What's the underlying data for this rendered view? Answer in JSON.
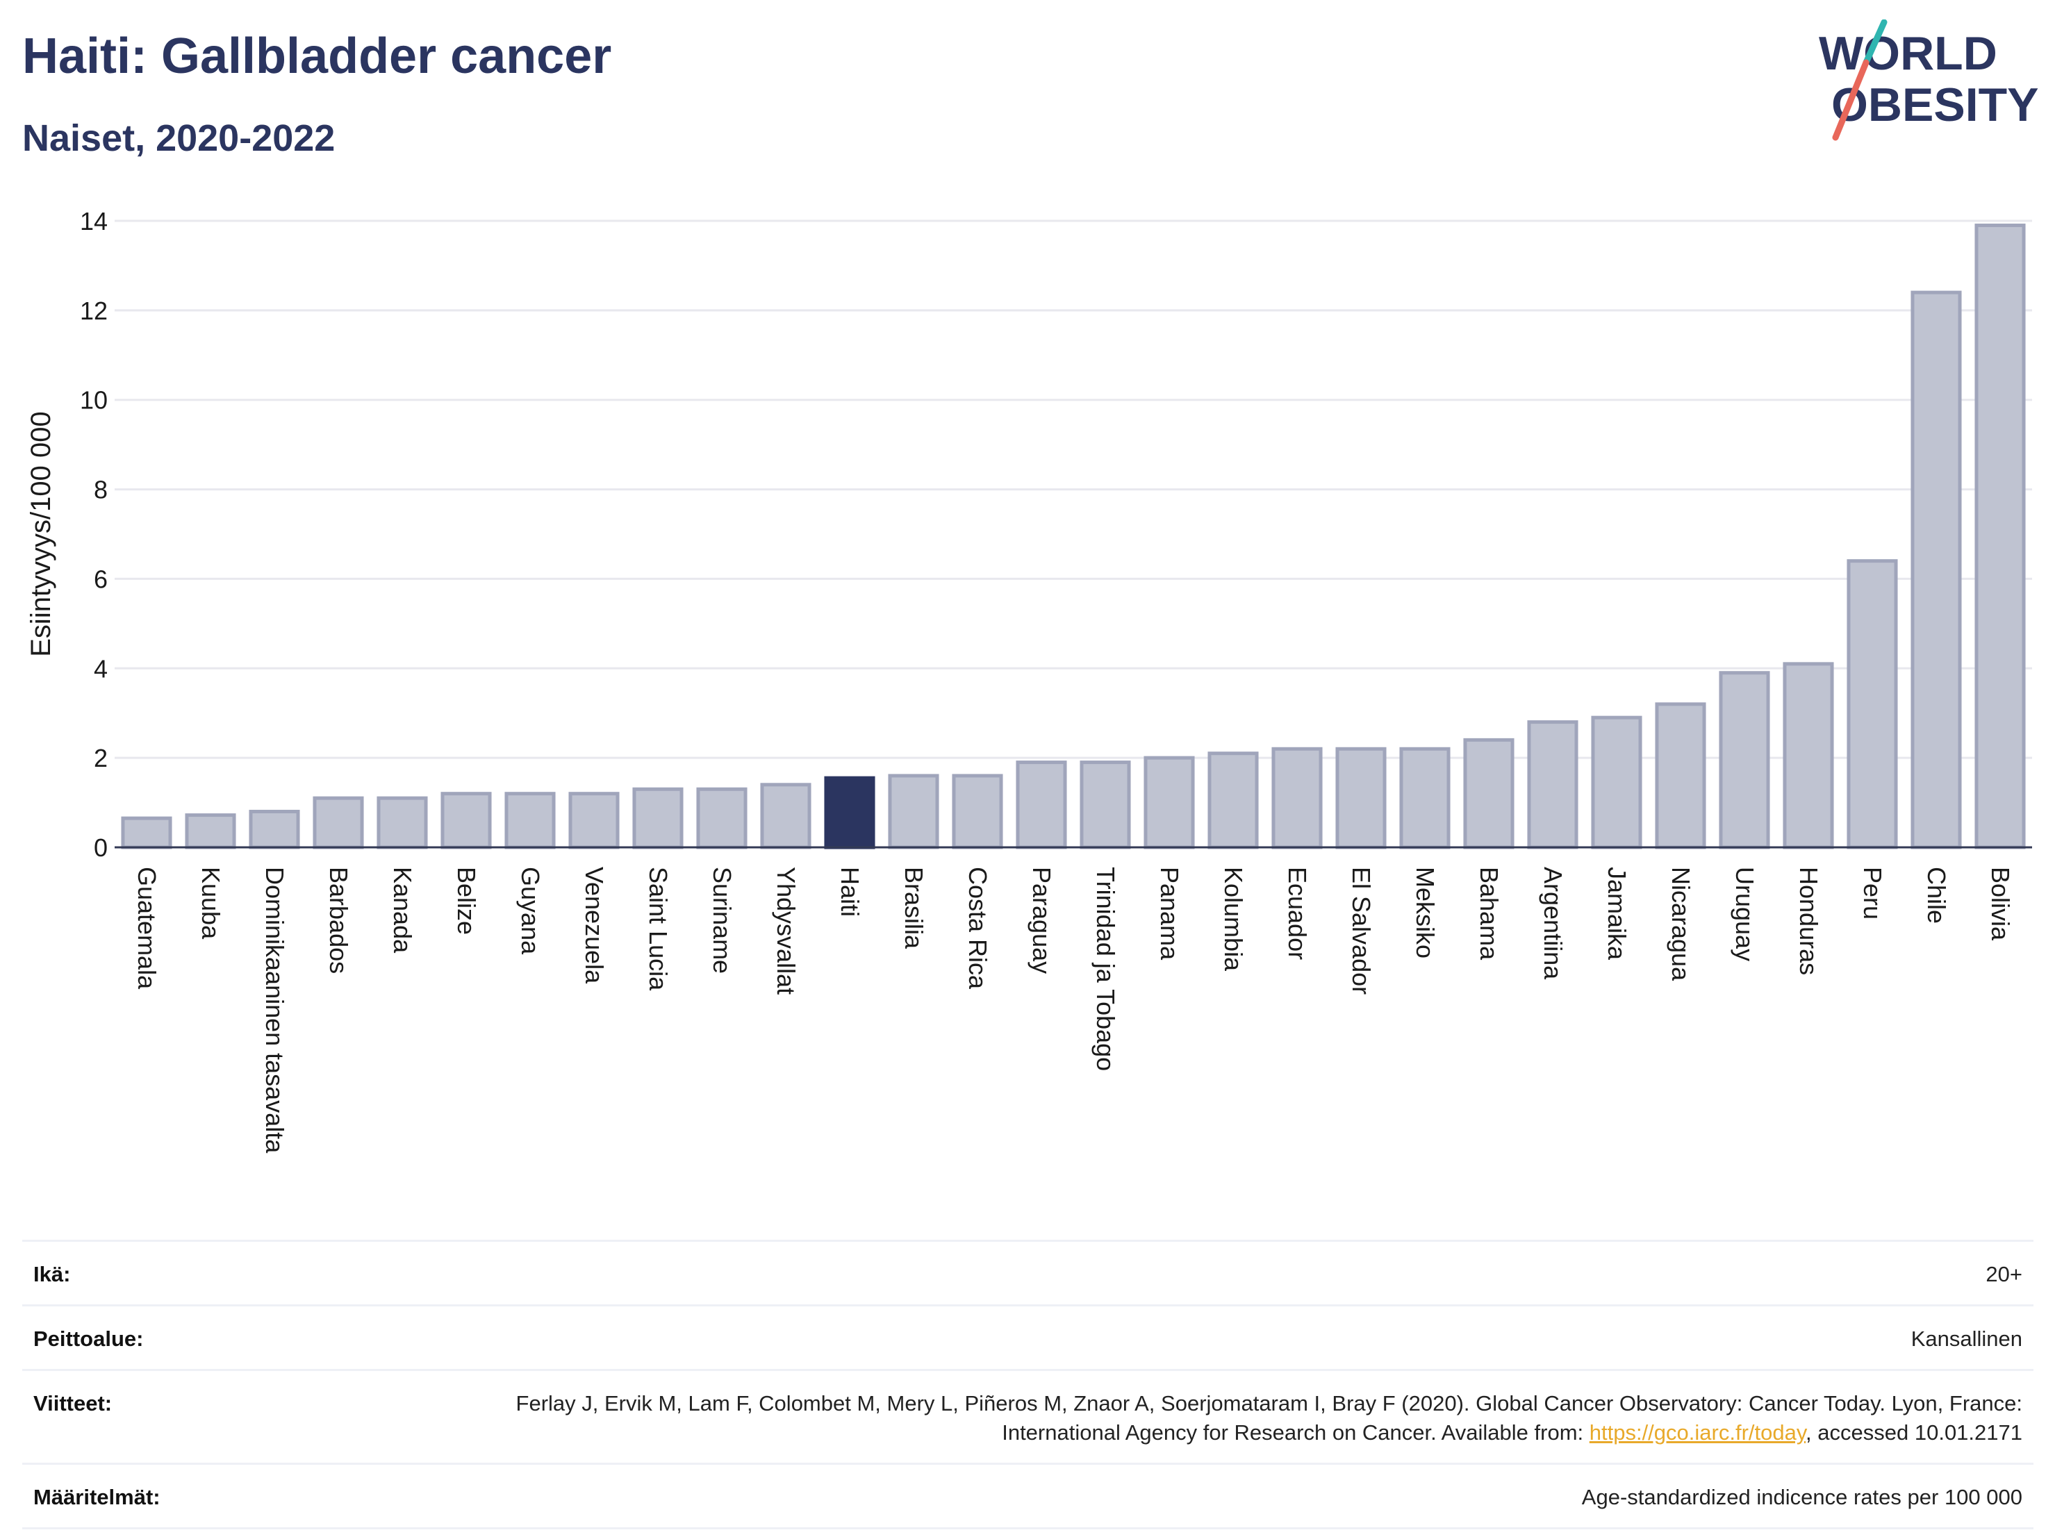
{
  "header": {
    "title": "Haiti: Gallbladder cancer",
    "subtitle": "Naiset, 2020-2022"
  },
  "logo": {
    "line1": "WORLD",
    "line2": "OBESITY"
  },
  "colors": {
    "title": "#2b3560",
    "highlight_bar": "#2b3560",
    "bar_fill": "#bfc3d1",
    "bar_stroke": "#a0a5bb",
    "grid": "#e8e8ee",
    "logo_teal": "#2fb5b0",
    "logo_red": "#e8675a",
    "link": "#e8a92a"
  },
  "chart_data": {
    "type": "bar",
    "ylabel": "Esiintyvyys/100 000",
    "ylim": [
      0,
      14
    ],
    "yticks": [
      0,
      2,
      4,
      6,
      8,
      10,
      12,
      14
    ],
    "grid": true,
    "highlight": "Haiti",
    "categories": [
      "Guatemala",
      "Kuuba",
      "Dominikaaninen tasavalta",
      "Barbados",
      "Kanada",
      "Belize",
      "Guyana",
      "Venezuela",
      "Saint Lucia",
      "Suriname",
      "Yhdysvallat",
      "Haiti",
      "Brasilia",
      "Costa Rica",
      "Paraguay",
      "Trinidad ja Tobago",
      "Panama",
      "Kolumbia",
      "Ecuador",
      "El Salvador",
      "Meksiko",
      "Bahama",
      "Argentiina",
      "Jamaika",
      "Nicaragua",
      "Uruguay",
      "Honduras",
      "Peru",
      "Chile",
      "Bolivia"
    ],
    "values": [
      0.65,
      0.72,
      0.8,
      1.1,
      1.1,
      1.2,
      1.2,
      1.2,
      1.3,
      1.3,
      1.4,
      1.55,
      1.6,
      1.6,
      1.9,
      1.9,
      2.0,
      2.1,
      2.2,
      2.2,
      2.2,
      2.4,
      2.8,
      2.9,
      3.2,
      3.9,
      4.1,
      6.4,
      12.4,
      13.9
    ]
  },
  "footer": {
    "age_label": "Ikä:",
    "age_value": "20+",
    "coverage_label": "Peittoalue:",
    "coverage_value": "Kansallinen",
    "refs_label": "Viitteet:",
    "refs_text_1": "Ferlay J, Ervik M, Lam F, Colombet M, Mery L, Piñeros M, Znaor A, Soerjomataram I, Bray F (2020). Global Cancer Observatory: Cancer Today. Lyon, France: International Agency for Research on Cancer. Available from: ",
    "refs_link": "https://gco.iarc.fr/today",
    "refs_text_2": ", accessed 10.01.2171",
    "defs_label": "Määritelmät:",
    "defs_value": "Age-standardized indicence rates per 100 000"
  }
}
